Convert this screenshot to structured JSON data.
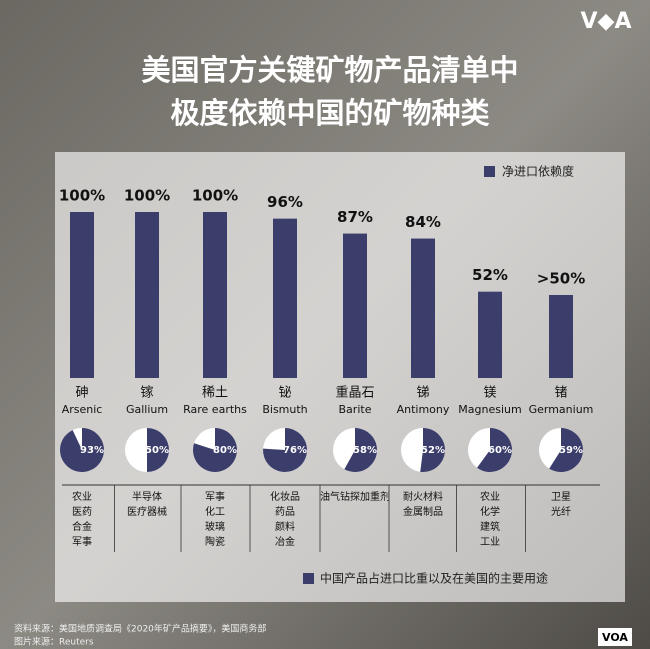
{
  "title": [
    "美国官方关键矿物产品清单中",
    "极度依赖中国的矿物种类"
  ],
  "logo": "V◆A",
  "chart_data": [
    {
      "type": "bar",
      "legend": "净进口依赖度",
      "categories": [
        "砷",
        "镓",
        "稀土",
        "铋",
        "重晶石",
        "锑",
        "镁",
        "锗"
      ],
      "categories_en": [
        "Arsenic",
        "Gallium",
        "Rare earths",
        "Bismuth",
        "Barite",
        "Antimony",
        "Magnesium",
        "Germanium"
      ],
      "values": [
        100,
        100,
        100,
        96,
        87,
        84,
        52,
        50
      ],
      "value_labels": [
        "100%",
        "100%",
        "100%",
        "96%",
        "87%",
        "84%",
        "52%",
        ">50%"
      ],
      "color": "#3b3d6b"
    },
    {
      "type": "pie",
      "legend": "中国产品占进口比重以及在美国的主要用途",
      "values": [
        93,
        50,
        80,
        76,
        58,
        52,
        60,
        59
      ],
      "value_labels": [
        "93%",
        "50%",
        "80%",
        "76%",
        "58%",
        "52%",
        "60%",
        "59%"
      ],
      "uses": [
        [
          "农业",
          "医药",
          "合金",
          "军事"
        ],
        [
          "半导体",
          "医疗器械"
        ],
        [
          "军事",
          "化工",
          "玻璃",
          "陶瓷"
        ],
        [
          "化妆品",
          "药品",
          "颜料",
          "冶金"
        ],
        [
          "油气钻探加重剂"
        ],
        [
          "耐火材料",
          "金属制品"
        ],
        [
          "农业",
          "化学",
          "建筑",
          "工业"
        ],
        [
          "卫星",
          "光纤"
        ]
      ],
      "color": "#3b3d6b"
    }
  ],
  "sources": [
    "资料来源：美国地质调查局《2020年矿产品摘要》，美国商务部",
    "图片来源：Reuters"
  ],
  "badge": "VOA"
}
